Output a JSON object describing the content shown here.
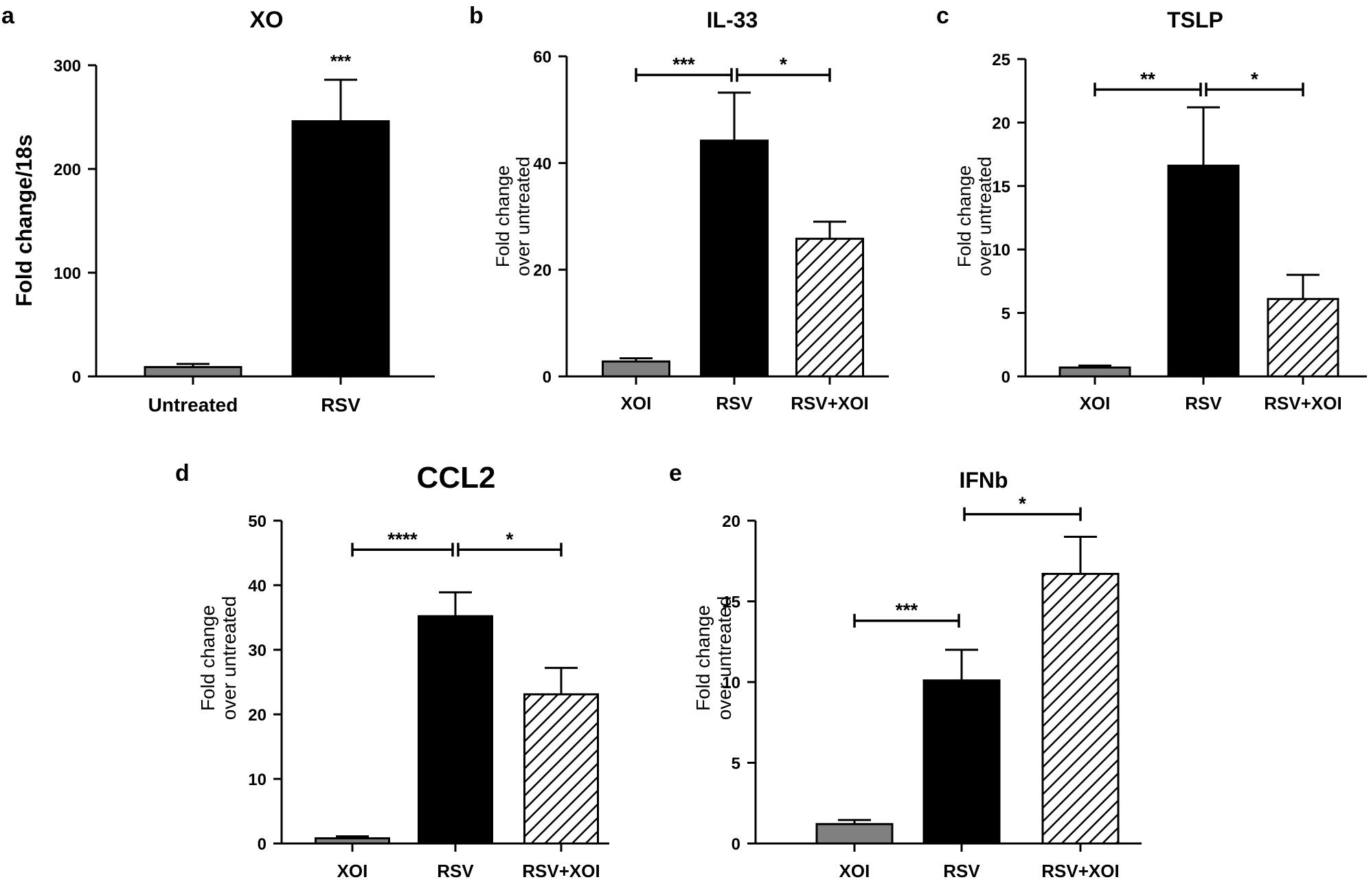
{
  "chart_data": [
    {
      "panel": "a",
      "type": "bar",
      "title": "XO",
      "ylabel": "Fold change/18s",
      "categories": [
        "Untreated",
        "RSV"
      ],
      "values": [
        9,
        246
      ],
      "errors": [
        3,
        40
      ],
      "fills": [
        "gray",
        "black"
      ],
      "ylim": [
        0,
        300
      ],
      "yticks": [
        "0",
        "100",
        "200",
        "300"
      ],
      "sig": [
        {
          "over": 1,
          "label": "***"
        }
      ]
    },
    {
      "panel": "b",
      "type": "bar",
      "title": "IL-33",
      "ylabel": [
        "Fold change",
        "over untreated"
      ],
      "categories": [
        "XOI",
        "RSV",
        "RSV+XOI"
      ],
      "values": [
        2.8,
        44.2,
        25.8
      ],
      "errors": [
        0.6,
        9.0,
        3.2
      ],
      "fills": [
        "gray",
        "black",
        "hatch"
      ],
      "ylim": [
        0,
        60
      ],
      "yticks": [
        "0",
        "20",
        "40",
        "60"
      ],
      "sig": [
        {
          "from": 0,
          "to": 1,
          "y": 56.5,
          "label": "***"
        },
        {
          "from": 1,
          "to": 2,
          "y": 56.5,
          "label": "*"
        }
      ]
    },
    {
      "panel": "c",
      "type": "bar",
      "title": "TSLP",
      "ylabel": [
        "Fold change",
        "over untreated"
      ],
      "categories": [
        "XOI",
        "RSV",
        "RSV+XOI"
      ],
      "values": [
        0.7,
        16.6,
        6.1
      ],
      "errors": [
        0.15,
        4.6,
        1.9
      ],
      "fills": [
        "gray",
        "black",
        "hatch"
      ],
      "ylim": [
        0,
        25
      ],
      "yticks": [
        "0",
        "5",
        "10",
        "15",
        "20",
        "25"
      ],
      "sig": [
        {
          "from": 0,
          "to": 1,
          "y": 22.6,
          "label": "**"
        },
        {
          "from": 1,
          "to": 2,
          "y": 22.6,
          "label": "*"
        }
      ]
    },
    {
      "panel": "d",
      "type": "bar",
      "title": "CCL2",
      "ylabel": [
        "Fold change",
        "over untreated"
      ],
      "categories": [
        "XOI",
        "RSV",
        "RSV+XOI"
      ],
      "values": [
        0.8,
        35.2,
        23.1
      ],
      "errors": [
        0.3,
        3.7,
        4.1
      ],
      "fills": [
        "gray",
        "black",
        "hatch"
      ],
      "ylim": [
        0,
        50
      ],
      "yticks": [
        "0",
        "10",
        "20",
        "30",
        "40",
        "50"
      ],
      "sig": [
        {
          "from": 0,
          "to": 1,
          "y": 45.5,
          "label": "****"
        },
        {
          "from": 1,
          "to": 2,
          "y": 45.5,
          "label": "*"
        }
      ]
    },
    {
      "panel": "e",
      "type": "bar",
      "title": "IFNb",
      "ylabel": [
        "Fold change",
        "over untreated"
      ],
      "categories": [
        "XOI",
        "RSV",
        "RSV+XOI"
      ],
      "values": [
        1.2,
        10.1,
        16.7
      ],
      "errors": [
        0.25,
        1.9,
        2.3
      ],
      "fills": [
        "gray",
        "black",
        "hatch"
      ],
      "ylim": [
        0,
        20
      ],
      "yticks": [
        "0",
        "5",
        "10",
        "15",
        "20"
      ],
      "sig": [
        {
          "from": 0,
          "to": 1,
          "y": 13.8,
          "label": "***"
        },
        {
          "from": 1,
          "to": 2,
          "y": 20.4,
          "label": "*"
        }
      ]
    }
  ],
  "colors": {
    "gray": "#808080",
    "black": "#000000",
    "axis": "#000000"
  }
}
